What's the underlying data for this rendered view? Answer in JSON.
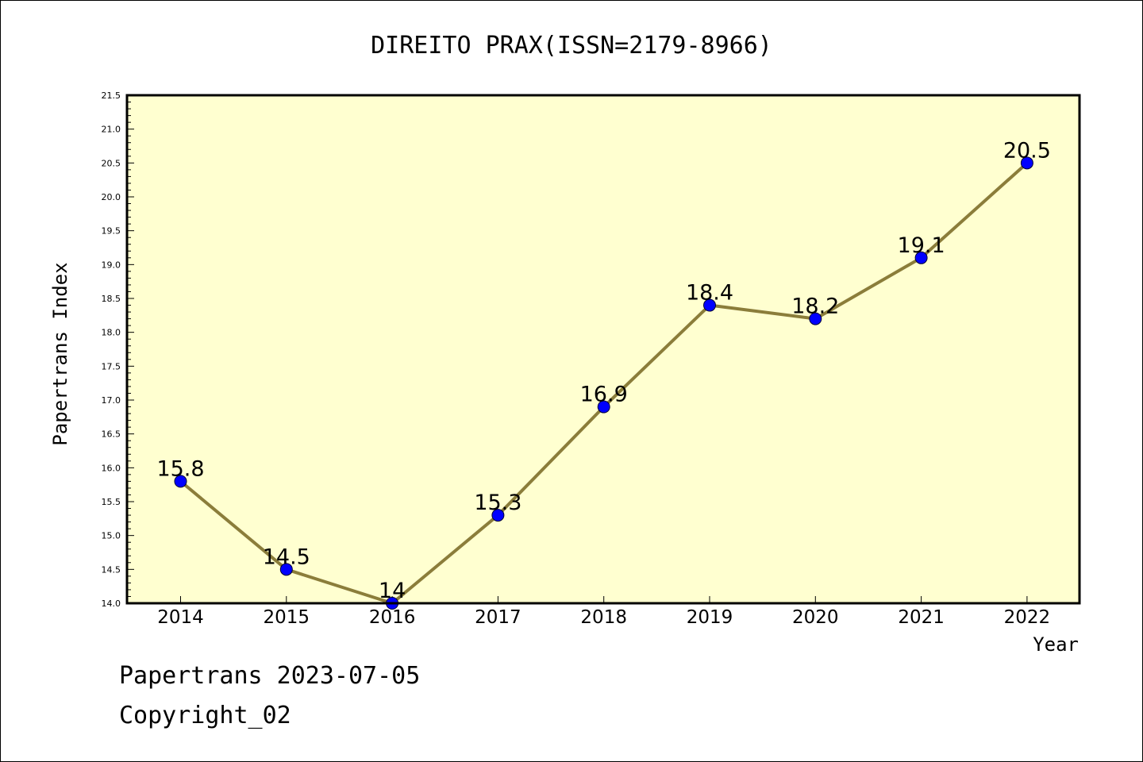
{
  "chart_data": {
    "type": "line",
    "title": "DIREITO PRAX(ISSN=2179-8966)",
    "xlabel": "Year",
    "ylabel": "Papertrans Index",
    "categories": [
      "2014",
      "2015",
      "2016",
      "2017",
      "2018",
      "2019",
      "2020",
      "2021",
      "2022"
    ],
    "values": [
      15.8,
      14.5,
      14.0,
      15.3,
      16.9,
      18.4,
      18.2,
      19.1,
      20.5
    ],
    "data_labels": [
      "15.8",
      "14.5",
      "14",
      "15.3",
      "16.9",
      "18.4",
      "18.2",
      "19.1",
      "20.5"
    ],
    "ylim": [
      14.0,
      21.5
    ],
    "y_ticks": [
      "14.0",
      "14.5",
      "15.0",
      "15.5",
      "16.0",
      "16.5",
      "17.0",
      "17.5",
      "18.0",
      "18.5",
      "19.0",
      "19.5",
      "20.0",
      "20.5",
      "21.0",
      "21.5"
    ],
    "grid": false,
    "colors": {
      "plot_background": "#ffffd0",
      "line": "#8b7d3a",
      "marker": "#0000ff"
    }
  },
  "footer": {
    "line1": "Papertrans 2023-07-05",
    "line2": "Copyright_02"
  }
}
